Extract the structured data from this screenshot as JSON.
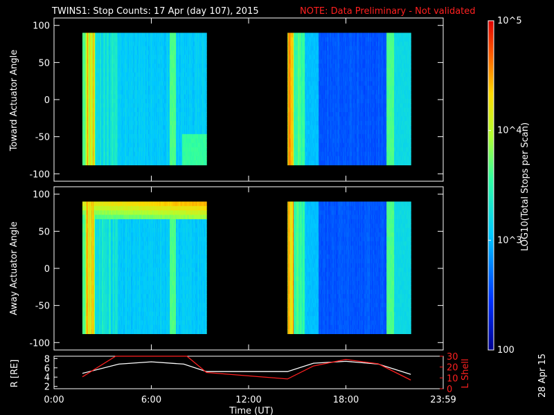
{
  "header": {
    "title": "TWINS1: Stop Counts: 17 Apr (day 107), 2015",
    "note": "NOTE: Data Preliminary - Not validated"
  },
  "colors": {
    "background": "#000000",
    "frame": "#ffffff",
    "note": "#ff2020",
    "r_line": "#ffffff",
    "lshell_line": "#ff2020"
  },
  "colorbar": {
    "label": "LOG10(Total Stops per Scan)",
    "ticks": [
      "10^5",
      "10^4",
      "10^3",
      "100"
    ],
    "range": [
      100,
      100000
    ],
    "scale": "log",
    "colormap": "rainbow (blue-cyan-green-yellow-red)"
  },
  "timestamp_side": "28 Apr 15",
  "chart_data": [
    {
      "type": "heatmap",
      "title": "",
      "ylabel": "Toward Actuator Angle",
      "ylim": [
        -110,
        110
      ],
      "yticks": [
        "100",
        "50",
        "0",
        "-50",
        "-100"
      ],
      "x_range_hours": [
        0,
        24
      ],
      "angle_range": [
        -88,
        90
      ],
      "scans": [
        {
          "start_hour": 1.75,
          "end_hour": 9.4
        },
        {
          "start_hour": 14.4,
          "end_hour": 22.0
        }
      ]
    },
    {
      "type": "heatmap",
      "title": "",
      "ylabel": "Away Actuator Angle",
      "ylim": [
        -110,
        110
      ],
      "yticks": [
        "100",
        "50",
        "0",
        "-50",
        "-100"
      ],
      "x_range_hours": [
        0,
        24
      ],
      "angle_range": [
        -88,
        90
      ],
      "scans": [
        {
          "start_hour": 1.75,
          "end_hour": 9.4
        },
        {
          "start_hour": 14.4,
          "end_hour": 22.0
        }
      ]
    },
    {
      "type": "line",
      "ylabel_left": "R [RE]",
      "ylabel_right": "L Shell",
      "yticks_left": [
        "8",
        "6",
        "4",
        "2"
      ],
      "yticks_right": [
        "30",
        "20",
        "10",
        "0"
      ],
      "ylim_left": [
        1.5,
        8.5
      ],
      "ylim_right": [
        0,
        30
      ],
      "series": [
        {
          "name": "R [RE]",
          "axis": "left",
          "x": [
            1.75,
            4.0,
            6.0,
            8.0,
            9.4,
            14.4,
            16.0,
            18.0,
            20.0,
            22.0
          ],
          "y": [
            4.8,
            6.8,
            7.3,
            6.8,
            5.2,
            5.2,
            7.0,
            7.4,
            6.8,
            4.6
          ]
        },
        {
          "name": "L Shell",
          "axis": "right",
          "x": [
            1.75,
            3.8,
            8.2,
            9.4,
            14.4,
            16.0,
            18.0,
            20.0,
            22.0
          ],
          "y": [
            11,
            30,
            30,
            15,
            9,
            21,
            27,
            23,
            8
          ]
        }
      ]
    }
  ],
  "time_axis": {
    "label": "Time (UT)",
    "ticks": [
      "0:00",
      "6:00",
      "12:00",
      "18:00",
      "23:59"
    ]
  }
}
